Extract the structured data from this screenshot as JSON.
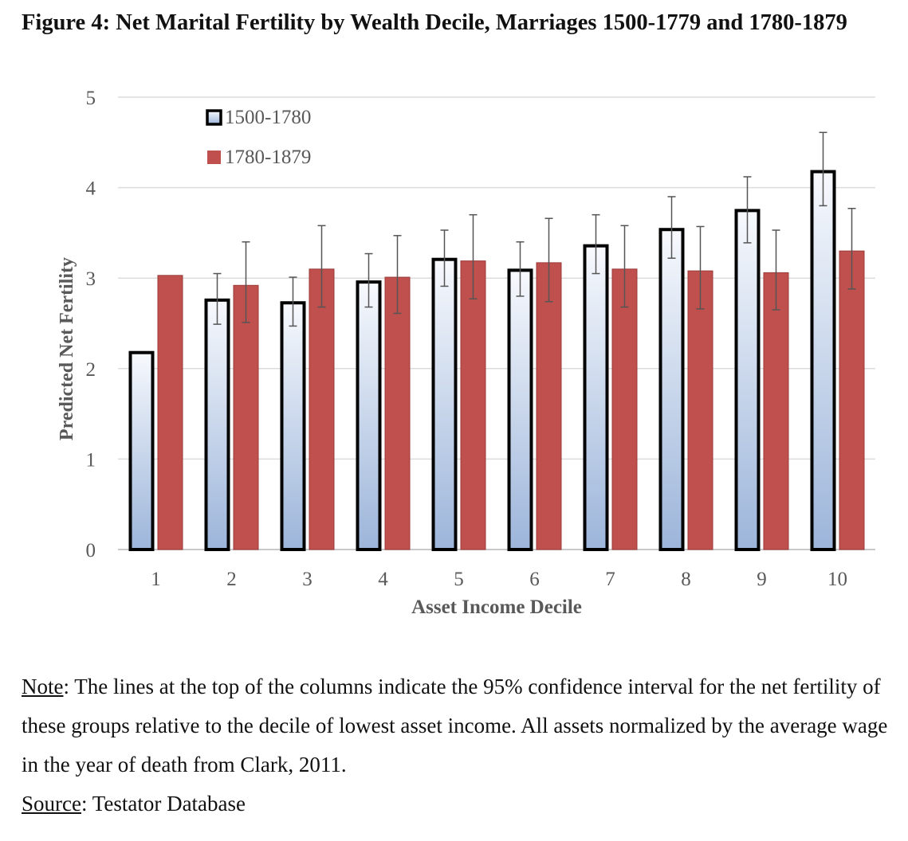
{
  "title": "Figure 4:  Net Marital Fertility by Wealth Decile, Marriages 1500-1779 and 1780-1879",
  "chart_data": {
    "type": "bar",
    "title": "Figure 4:  Net Marital Fertility by Wealth Decile, Marriages 1500-1779 and 1780-1879",
    "xlabel": "Asset Income Decile",
    "ylabel": "Predicted Net Fertility",
    "categories": [
      "1",
      "2",
      "3",
      "4",
      "5",
      "6",
      "7",
      "8",
      "9",
      "10"
    ],
    "ylim": [
      0,
      5
    ],
    "yticks": [
      "0",
      "1",
      "2",
      "3",
      "4",
      "5"
    ],
    "grid": true,
    "legend": "top-left",
    "series": [
      {
        "name": "1500-1780",
        "color": "#b0c4de",
        "values": [
          2.19,
          2.77,
          2.74,
          2.97,
          3.22,
          3.1,
          3.37,
          3.55,
          3.76,
          4.19
        ],
        "ci_low": [
          null,
          2.49,
          2.47,
          2.68,
          2.91,
          2.8,
          3.05,
          3.22,
          3.39,
          3.8
        ],
        "ci_high": [
          null,
          3.05,
          3.01,
          3.27,
          3.53,
          3.4,
          3.7,
          3.9,
          4.12,
          4.61
        ]
      },
      {
        "name": "1780-1879",
        "color": "#c0504d",
        "values": [
          3.03,
          2.92,
          3.1,
          3.01,
          3.19,
          3.17,
          3.1,
          3.08,
          3.06,
          3.3
        ],
        "ci_low": [
          null,
          2.51,
          2.68,
          2.61,
          2.77,
          2.74,
          2.68,
          2.66,
          2.65,
          2.88
        ],
        "ci_high": [
          null,
          3.4,
          3.58,
          3.47,
          3.7,
          3.66,
          3.58,
          3.57,
          3.53,
          3.77
        ]
      }
    ]
  },
  "notes": {
    "note_label": "Note",
    "note_text": ": The lines at the top of the columns indicate the 95% confidence interval for the net fertility of these groups relative to the decile of lowest asset income.  All assets normalized by the average wage in the year of death from Clark, 2011.",
    "source_label": "Source",
    "source_text": ": Testator Database"
  }
}
